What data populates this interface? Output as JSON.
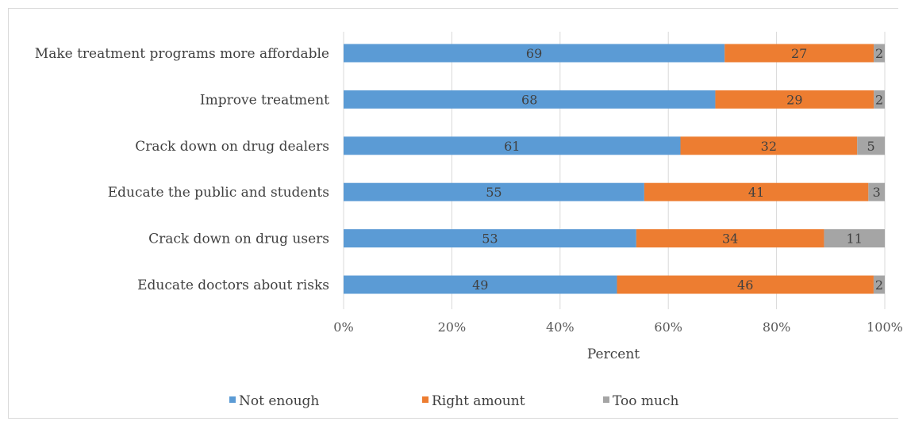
{
  "chart_data": {
    "type": "bar",
    "orientation": "horizontal",
    "stacked": "percent",
    "categories": [
      "Make treatment programs more affordable",
      "Improve treatment",
      "Crack down on drug dealers",
      "Educate the public and students",
      "Crack down on drug users",
      "Educate doctors about risks"
    ],
    "series": [
      {
        "name": "Not enough",
        "color": "#5b9bd5",
        "values": [
          69,
          68,
          61,
          55,
          53,
          49
        ]
      },
      {
        "name": "Right amount",
        "color": "#ed7d31",
        "values": [
          27,
          29,
          32,
          41,
          34,
          46
        ]
      },
      {
        "name": "Too much",
        "color": "#a5a5a5",
        "values": [
          2,
          2,
          5,
          3,
          11,
          2
        ]
      }
    ],
    "xlabel": "Percent",
    "xticks": [
      "0%",
      "20%",
      "40%",
      "60%",
      "80%",
      "100%"
    ],
    "xlim": [
      0,
      100
    ],
    "grid": true,
    "legend_position": "bottom"
  }
}
